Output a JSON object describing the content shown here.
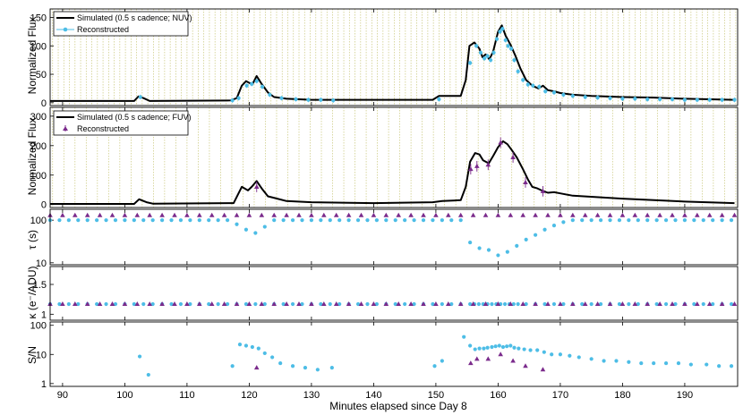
{
  "chart_data": [
    {
      "type": "line",
      "ylabel": "Normalized Flux",
      "ylim": [
        -5,
        165
      ],
      "yticks": [
        0,
        50,
        100,
        150
      ],
      "legend": {
        "position": "top-left",
        "entries": [
          "Simulated (0.5 s cadence; NUV)",
          "Reconstructed"
        ]
      },
      "series": [
        {
          "name": "Simulated (0.5 s cadence; NUV)",
          "color": "#000000",
          "x": [
            88,
            101.5,
            102.2,
            103,
            104,
            117,
            118,
            118.8,
            119.5,
            120.5,
            121.2,
            122,
            123,
            124,
            126,
            130,
            149.5,
            150.5,
            154,
            154.8,
            155.4,
            156.2,
            157,
            157.5,
            158,
            158.6,
            159.2,
            160,
            160.6,
            161.2,
            162,
            162.8,
            163.6,
            164.5,
            165.5,
            166.5,
            167.2,
            168,
            169,
            170,
            172,
            175,
            180,
            185,
            190,
            198
          ],
          "y": [
            3,
            3,
            11,
            8,
            3,
            4,
            8,
            30,
            38,
            32,
            47,
            33,
            18,
            10,
            7,
            5,
            5,
            12,
            12,
            40,
            100,
            106,
            95,
            80,
            85,
            76,
            90,
            125,
            136,
            118,
            102,
            82,
            60,
            40,
            30,
            25,
            30,
            22,
            20,
            17,
            14,
            12,
            10,
            9,
            7,
            5
          ]
        },
        {
          "name": "Reconstructed",
          "color": "#4dbde6",
          "x": [
            102.5,
            117.3,
            118.3,
            119.6,
            120.4,
            121.2,
            122.1,
            123.3,
            125.2,
            127.5,
            129.5,
            131.5,
            133.5,
            150.5,
            155.5,
            156.5,
            157.2,
            157.8,
            158.3,
            158.8,
            159.3,
            159.8,
            160.3,
            160.7,
            161.2,
            161.6,
            162.1,
            162.6,
            163.2,
            164,
            164.8,
            165.6,
            166.6,
            167.6,
            169,
            170.5,
            172,
            174,
            176,
            178,
            180,
            182,
            184,
            186,
            188,
            190,
            192,
            194,
            196,
            198
          ],
          "y": [
            10,
            4,
            8,
            30,
            33,
            38,
            28,
            14,
            8,
            6,
            5,
            5,
            4,
            6,
            70,
            100,
            88,
            78,
            82,
            75,
            88,
            112,
            125,
            130,
            110,
            100,
            95,
            75,
            55,
            40,
            32,
            30,
            28,
            20,
            18,
            14,
            12,
            10,
            9,
            8,
            7,
            7,
            6,
            6,
            6,
            5,
            5,
            5,
            5,
            5
          ]
        }
      ]
    },
    {
      "type": "line",
      "ylabel": "Normalized Flux",
      "ylim": [
        -10,
        330
      ],
      "yticks": [
        0,
        100,
        200,
        300
      ],
      "legend": {
        "position": "top-left",
        "entries": [
          "Simulated (0.5 s cadence; FUV)",
          "Reconstructed"
        ]
      },
      "series": [
        {
          "name": "Simulated (0.5 s cadence; FUV)",
          "color": "#000000",
          "x": [
            88,
            101.5,
            102.3,
            103.5,
            104.5,
            117.5,
            118.8,
            119.8,
            120.4,
            121.2,
            122,
            123,
            124.5,
            126,
            130,
            140,
            149.5,
            151,
            154,
            154.8,
            155.5,
            156.3,
            157,
            157.6,
            158.5,
            159.2,
            160,
            160.8,
            161.5,
            162.2,
            163,
            164,
            164.8,
            165.5,
            166.3,
            167,
            168,
            169,
            170,
            172,
            180,
            190,
            198
          ],
          "y": [
            2,
            2,
            18,
            8,
            3,
            5,
            60,
            48,
            60,
            80,
            55,
            28,
            20,
            12,
            8,
            5,
            8,
            12,
            15,
            60,
            145,
            175,
            170,
            150,
            140,
            165,
            195,
            215,
            205,
            185,
            160,
            120,
            85,
            60,
            55,
            48,
            40,
            42,
            38,
            30,
            20,
            10,
            5
          ]
        },
        {
          "name": "Reconstructed",
          "color": "#7b2b8c",
          "x": [
            121.2,
            155.6,
            156.6,
            158.4,
            160.4,
            162.4,
            164.4,
            167.2
          ],
          "y": [
            60,
            120,
            130,
            135,
            210,
            160,
            75,
            45
          ]
        }
      ]
    },
    {
      "type": "scatter",
      "ylabel": "τ (s)",
      "yscale": "log",
      "ylim": [
        9,
        180
      ],
      "yticks": [
        10,
        100
      ],
      "series": [
        {
          "name": "NUV",
          "color": "#4dbde6",
          "x": [
            88,
            89.5,
            91,
            92.5,
            94,
            95.5,
            97,
            98.5,
            100,
            101.5,
            103,
            104.5,
            106,
            107.5,
            109,
            110.5,
            112,
            113.5,
            115,
            116.5,
            118,
            119.5,
            121,
            122.5,
            124,
            125.5,
            127,
            128.5,
            130,
            131.5,
            133,
            134.5,
            136,
            137.5,
            139,
            140.5,
            142,
            143.5,
            145,
            146.5,
            148,
            149.5,
            151,
            152.5,
            154,
            155.5,
            157,
            158.5,
            160,
            161.5,
            163,
            164.5,
            166,
            167.5,
            169,
            170.5,
            172,
            173.5,
            175,
            176.5,
            178,
            179.5,
            181,
            182.5,
            184,
            185.5,
            187,
            188.5,
            190,
            191.5,
            193,
            194.5,
            196,
            197.5
          ],
          "y": [
            100,
            100,
            100,
            100,
            100,
            100,
            100,
            100,
            100,
            100,
            100,
            100,
            100,
            100,
            100,
            100,
            100,
            100,
            100,
            100,
            80,
            60,
            50,
            70,
            100,
            100,
            100,
            100,
            100,
            100,
            100,
            100,
            100,
            100,
            100,
            100,
            100,
            100,
            100,
            100,
            100,
            100,
            100,
            100,
            100,
            30,
            22,
            20,
            15,
            18,
            25,
            35,
            45,
            60,
            75,
            90,
            100,
            100,
            100,
            100,
            100,
            100,
            100,
            100,
            100,
            100,
            100,
            100,
            100,
            100,
            100,
            100,
            100,
            100
          ]
        },
        {
          "name": "FUV",
          "color": "#7b2b8c",
          "x": [
            88,
            90,
            92,
            94,
            96,
            98,
            100,
            102,
            104,
            106,
            108,
            110,
            112,
            114,
            116,
            118,
            120,
            122,
            124,
            126,
            128,
            130,
            132,
            134,
            136,
            138,
            140,
            142,
            144,
            146,
            148,
            150,
            152,
            154,
            156,
            158,
            160,
            162,
            164,
            166,
            168,
            170,
            172,
            174,
            176,
            178,
            180,
            182,
            184,
            186,
            188,
            190,
            192,
            194,
            196,
            198
          ],
          "y": [
            130,
            130,
            130,
            130,
            130,
            130,
            130,
            130,
            130,
            130,
            130,
            130,
            130,
            130,
            130,
            130,
            130,
            130,
            130,
            130,
            130,
            130,
            130,
            130,
            130,
            130,
            130,
            130,
            130,
            130,
            130,
            130,
            130,
            130,
            130,
            130,
            130,
            130,
            130,
            130,
            130,
            130,
            130,
            130,
            130,
            130,
            130,
            130,
            130,
            130,
            130,
            130,
            130,
            130,
            130,
            130
          ]
        }
      ]
    },
    {
      "type": "scatter",
      "ylabel": "κ (e⁻/ADU)",
      "ylim": [
        0.9,
        1.8
      ],
      "yticks": [
        1,
        1.5
      ],
      "series": [
        {
          "name": "NUV",
          "color": "#4dbde6",
          "x": [
            88,
            89.5,
            91,
            92.5,
            94,
            95.5,
            97,
            98.5,
            100,
            101.5,
            103,
            104.5,
            106,
            107.5,
            109,
            110.5,
            112,
            113.5,
            115,
            116.5,
            118,
            119.5,
            121,
            122.5,
            124,
            125.5,
            127,
            128.5,
            130,
            131.5,
            133,
            134.5,
            136,
            137.5,
            139,
            140.5,
            142,
            143.5,
            145,
            146.5,
            148,
            149.5,
            151,
            152.5,
            154,
            155.5,
            156.2,
            156.9,
            157.6,
            158.3,
            159,
            159.7,
            160.4,
            161.1,
            161.8,
            162.5,
            163.2,
            164.5,
            166,
            167.5,
            169,
            170.5,
            172,
            173.5,
            175,
            176.5,
            178,
            179.5,
            181,
            182.5,
            184,
            185.5,
            187,
            188.5,
            190,
            191.5,
            193,
            194.5,
            196,
            197.5
          ],
          "y": [
            1.17,
            1.17,
            1.17,
            1.17,
            1.17,
            1.17,
            1.17,
            1.17,
            1.17,
            1.17,
            1.17,
            1.17,
            1.17,
            1.17,
            1.17,
            1.17,
            1.17,
            1.17,
            1.17,
            1.17,
            1.17,
            1.17,
            1.17,
            1.17,
            1.17,
            1.17,
            1.17,
            1.17,
            1.17,
            1.17,
            1.17,
            1.17,
            1.17,
            1.17,
            1.17,
            1.17,
            1.17,
            1.17,
            1.17,
            1.17,
            1.17,
            1.17,
            1.17,
            1.17,
            1.17,
            1.17,
            1.17,
            1.17,
            1.17,
            1.17,
            1.17,
            1.17,
            1.17,
            1.17,
            1.17,
            1.17,
            1.17,
            1.17,
            1.17,
            1.17,
            1.17,
            1.17,
            1.17,
            1.17,
            1.17,
            1.17,
            1.17,
            1.17,
            1.17,
            1.17,
            1.17,
            1.17,
            1.17,
            1.17,
            1.17,
            1.17,
            1.17,
            1.17,
            1.17,
            1.17
          ]
        },
        {
          "name": "FUV",
          "color": "#7b2b8c",
          "x": [
            88,
            90,
            92,
            94,
            96,
            98,
            100,
            102,
            104,
            106,
            108,
            110,
            112,
            114,
            116,
            118,
            120,
            122,
            124,
            126,
            128,
            130,
            132,
            134,
            136,
            138,
            140,
            142,
            144,
            146,
            148,
            150,
            152,
            154,
            156,
            158,
            160,
            162,
            164,
            166,
            168,
            170,
            172,
            174,
            176,
            178,
            180,
            182,
            184,
            186,
            188,
            190,
            192,
            194,
            196,
            198
          ],
          "y": [
            1.17,
            1.17,
            1.17,
            1.17,
            1.17,
            1.17,
            1.17,
            1.17,
            1.17,
            1.17,
            1.17,
            1.17,
            1.17,
            1.17,
            1.17,
            1.17,
            1.17,
            1.17,
            1.17,
            1.17,
            1.17,
            1.17,
            1.17,
            1.17,
            1.17,
            1.17,
            1.17,
            1.17,
            1.17,
            1.17,
            1.17,
            1.17,
            1.17,
            1.17,
            1.17,
            1.17,
            1.17,
            1.17,
            1.17,
            1.17,
            1.17,
            1.17,
            1.17,
            1.17,
            1.17,
            1.17,
            1.17,
            1.17,
            1.17,
            1.17,
            1.17,
            1.17,
            1.17,
            1.17,
            1.17,
            1.17
          ]
        }
      ]
    },
    {
      "type": "scatter",
      "ylabel": "S/N",
      "xlabel": "Minutes elapsed since Day 8",
      "yscale": "log",
      "ylim": [
        0.8,
        130
      ],
      "yticks": [
        1,
        10,
        100
      ],
      "xlim": [
        88,
        198.5
      ],
      "xticks": [
        90,
        100,
        110,
        120,
        130,
        140,
        150,
        160,
        170,
        180,
        190
      ],
      "series": [
        {
          "name": "NUV",
          "color": "#4dbde6",
          "x": [
            102.4,
            103.8,
            117.3,
            118.5,
            119.5,
            120.5,
            121.5,
            122.5,
            123.7,
            125,
            127,
            129,
            131,
            133.3,
            149.8,
            151,
            154.5,
            155.5,
            156.3,
            157,
            157.7,
            158.3,
            159,
            159.6,
            160.2,
            160.8,
            161.4,
            162,
            162.6,
            163.3,
            164.2,
            165.2,
            166.3,
            167.4,
            168.6,
            170,
            171.5,
            173,
            175,
            177,
            179,
            181,
            183,
            185,
            187,
            189,
            191,
            193.5,
            195.5,
            197.5
          ],
          "y": [
            8.5,
            2,
            4,
            22,
            20,
            18,
            16,
            11,
            8,
            5,
            4,
            3.5,
            3,
            3.5,
            4,
            6,
            40,
            20,
            15,
            16,
            16,
            17,
            18,
            19,
            20,
            18,
            19,
            20,
            17,
            16,
            15,
            14,
            14,
            12,
            10,
            10,
            9,
            8,
            7,
            6,
            6,
            5.5,
            5,
            5,
            5,
            5,
            4.5,
            4.5,
            4,
            4
          ]
        },
        {
          "name": "FUV",
          "color": "#7b2b8c",
          "x": [
            121.2,
            155.6,
            156.6,
            158.4,
            160.4,
            162.4,
            164.4,
            167.2
          ],
          "y": [
            3.5,
            5,
            7,
            7,
            10,
            6,
            4,
            3
          ]
        }
      ]
    }
  ]
}
